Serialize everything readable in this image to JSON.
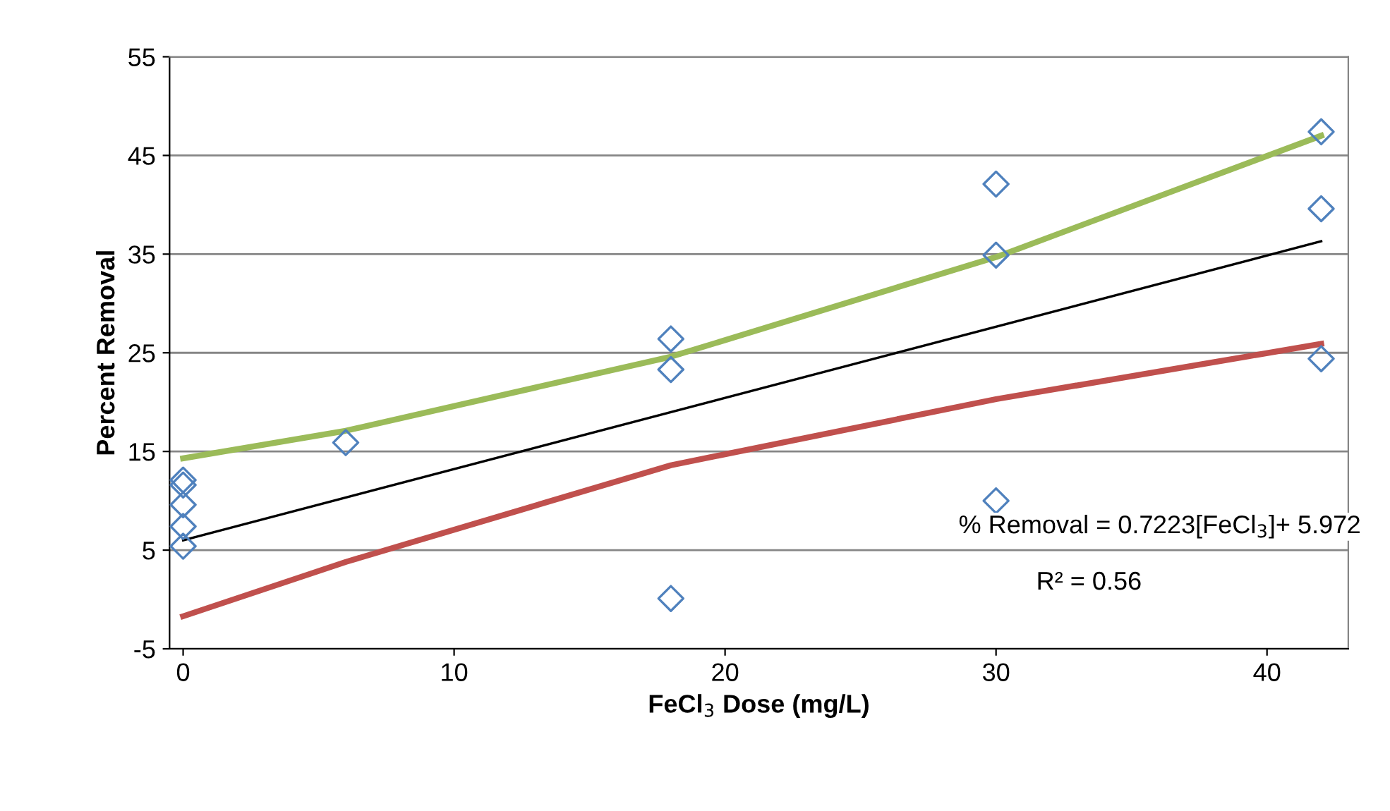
{
  "chart_data": {
    "type": "scatter",
    "xlabel": "FeCl$_{3}$ Dose (mg/L)",
    "ylabel": "Percent Removal",
    "xlim": [
      -0.5,
      43
    ],
    "xticks": [
      0,
      10,
      20,
      30,
      40
    ],
    "ylim": [
      -5,
      55
    ],
    "yticks": [
      -5,
      5,
      15,
      25,
      35,
      45,
      55
    ],
    "grid": "y",
    "legend": false,
    "series": [
      {
        "type": "line",
        "color": "#9bbb59",
        "x": [
          0,
          6,
          18,
          30,
          42
        ],
        "values": [
          14.3,
          17.1,
          24.6,
          34.7,
          47.0
        ],
        "marker": "none",
        "line_style": "solid"
      },
      {
        "type": "line",
        "color": "#c0504d",
        "x": [
          0,
          6,
          18,
          30,
          42
        ],
        "values": [
          -1.7,
          3.8,
          13.6,
          20.3,
          25.9
        ],
        "marker": "none",
        "line_style": "solid"
      },
      {
        "type": "line",
        "color": "#000000",
        "x": [
          0,
          42
        ],
        "values": [
          6.0,
          36.3
        ],
        "marker": "none",
        "line_style": "solid"
      },
      {
        "type": "scatter",
        "color": "#4f81bd",
        "marker": "diamond",
        "x": [
          0,
          0,
          0,
          0,
          0,
          6,
          18,
          18,
          18,
          30,
          30,
          30,
          42,
          42,
          42
        ],
        "values": [
          12.1,
          11.6,
          9.6,
          7.4,
          5.4,
          15.9,
          26.4,
          23.3,
          0.1,
          42.1,
          34.9,
          10.0,
          47.4,
          39.6,
          24.4
        ]
      }
    ],
    "annotations": [
      "% Removal = 0.7223[FeCl$_{3}$]+ 5.972",
      "R² = 0.56"
    ]
  }
}
